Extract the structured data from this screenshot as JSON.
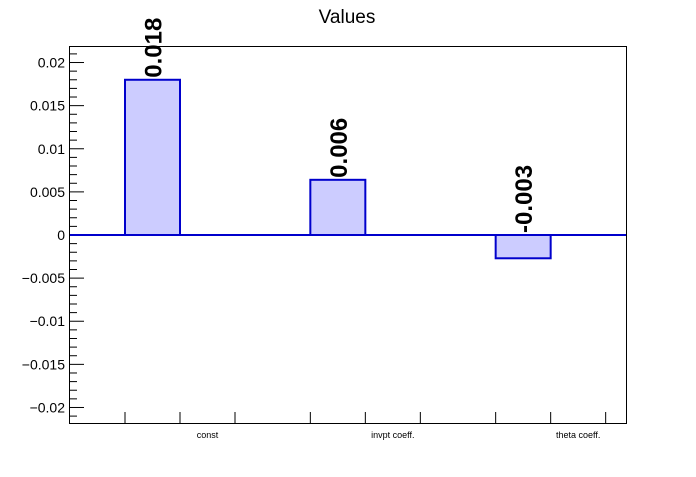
{
  "chart_data": {
    "type": "bar",
    "title": "Values",
    "xlabel": "",
    "ylabel": "",
    "categories": [
      "const",
      "invpt coeff.",
      "theta coeff."
    ],
    "values": [
      0.018,
      0.0064,
      -0.0027
    ],
    "data_labels": [
      "0.018",
      "0.006",
      "-0.003"
    ],
    "ylim": [
      -0.0218,
      0.0218
    ],
    "y_ticks": [
      {
        "value": 0.02,
        "label": "0.02"
      },
      {
        "value": 0.015,
        "label": "0.015"
      },
      {
        "value": 0.01,
        "label": "0.01"
      },
      {
        "value": 0.005,
        "label": "0.005"
      },
      {
        "value": 0,
        "label": "0"
      },
      {
        "value": -0.005,
        "label": "−0.005"
      },
      {
        "value": -0.01,
        "label": "−0.01"
      },
      {
        "value": -0.015,
        "label": "−0.015"
      },
      {
        "value": -0.02,
        "label": "−0.02"
      }
    ],
    "grid": false,
    "legend": "none",
    "colors": {
      "bar_fill": "#ccccff",
      "bar_stroke": "#0000cc",
      "zero_line": "#0000cc",
      "axis": "#000000"
    }
  }
}
